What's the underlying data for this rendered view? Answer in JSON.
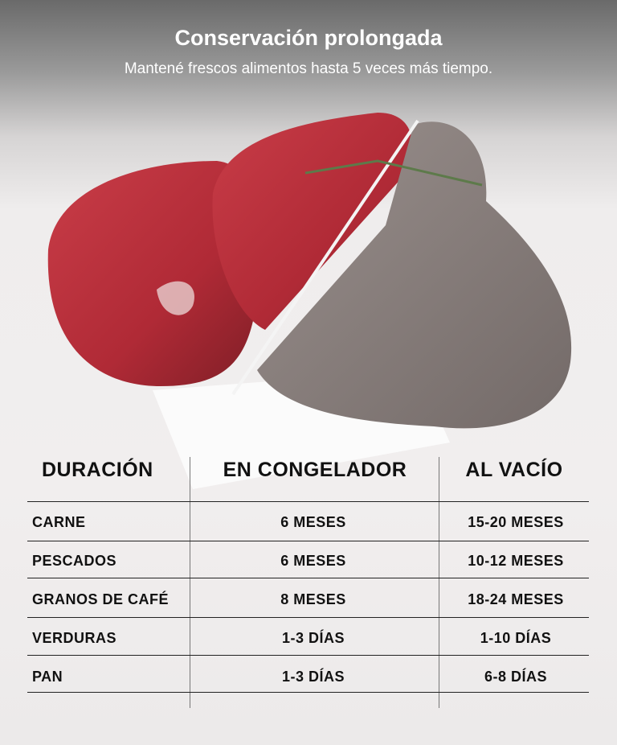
{
  "header": {
    "title": "Conservación prolongada",
    "subtitle": "Mantené frescos alimentos hasta 5 veces más tiempo."
  },
  "image": {
    "subject": "meat-fresh-vs-spoiled",
    "colors": {
      "fresh": "#b8303c",
      "spoiled": "#8e8582"
    }
  },
  "table": {
    "headers": [
      "DURACIÓN",
      "EN CONGELADOR",
      "AL VACÍO"
    ],
    "rows": [
      [
        "CARNE",
        "6 MESES",
        "15-20 MESES"
      ],
      [
        "PESCADOS",
        "6 MESES",
        "10-12 MESES"
      ],
      [
        "GRANOS DE CAFÉ",
        "8 MESES",
        "18-24 MESES"
      ],
      [
        "VERDURAS",
        "1-3 DÍAS",
        "1-10 DÍAS"
      ],
      [
        "PAN",
        "1-3 DÍAS",
        "6-8 DÍAS"
      ]
    ]
  }
}
